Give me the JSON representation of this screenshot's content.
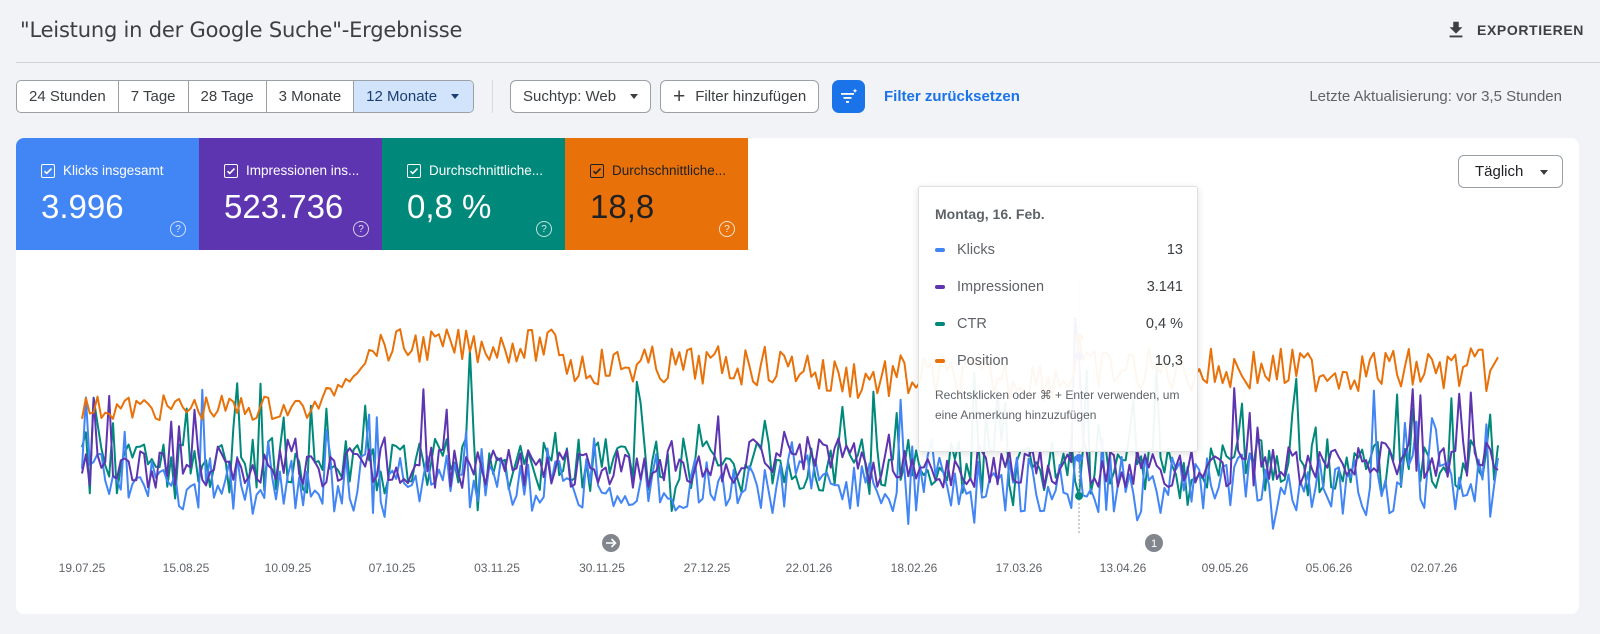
{
  "header": {
    "title": "\"Leistung in der Google Suche\"-Ergebnisse",
    "export_label": "EXPORTIEREN"
  },
  "toolbar": {
    "date_ranges": [
      "24 Stunden",
      "7 Tage",
      "28 Tage",
      "3 Monate",
      "12 Monate"
    ],
    "search_type": "Suchtyp: Web",
    "add_filter": "Filter hinzufügen",
    "reset_filter": "Filter zurücksetzen",
    "last_update": "Letzte Aktualisierung: vor 3,5 Stunden"
  },
  "metrics": [
    {
      "label": "Klicks insgesamt",
      "value": "3.996",
      "color": "#4285f4"
    },
    {
      "label": "Impressionen ins...",
      "value": "523.736",
      "color": "#5e35b1"
    },
    {
      "label": "Durchschnittliche...",
      "value": "0,8 %",
      "color": "#00897b"
    },
    {
      "label": "Durchschnittliche...",
      "value": "18,8",
      "color": "#e8710a"
    }
  ],
  "granularity": "Täglich",
  "tooltip": {
    "date": "Montag, 16. Feb.",
    "rows": [
      {
        "label": "Klicks",
        "value": "13",
        "color": "#4285f4"
      },
      {
        "label": "Impressionen",
        "value": "3.141",
        "color": "#5e35b1"
      },
      {
        "label": "CTR",
        "value": "0,4 %",
        "color": "#00897b"
      },
      {
        "label": "Position",
        "value": "10,3",
        "color": "#e8710a"
      }
    ],
    "hint": "Rechtsklicken oder ⌘ + Enter verwenden, um eine Anmerkung hinzuzufügen"
  },
  "chart_data": {
    "type": "line",
    "x_ticks": [
      "19.07.25",
      "15.08.25",
      "10.09.25",
      "07.10.25",
      "03.11.25",
      "30.11.25",
      "27.12.25",
      "22.01.26",
      "18.02.26",
      "17.03.26",
      "13.04.26",
      "09.05.26",
      "05.06.26",
      "02.07.26"
    ],
    "annotations": [
      {
        "date": "30.11.25",
        "marker": "arrow-icon"
      },
      {
        "date": "22.04.26",
        "marker": "1"
      }
    ],
    "series": [
      {
        "name": "Klicks",
        "color": "#4285f4"
      },
      {
        "name": "Impressionen",
        "color": "#5e35b1"
      },
      {
        "name": "CTR",
        "color": "#00897b"
      },
      {
        "name": "Position",
        "color": "#e8710a"
      }
    ],
    "highlight": {
      "date": "16.02.26",
      "Klicks": 13,
      "Impressionen": 3141,
      "CTR": 0.4,
      "Position": 10.3
    }
  }
}
